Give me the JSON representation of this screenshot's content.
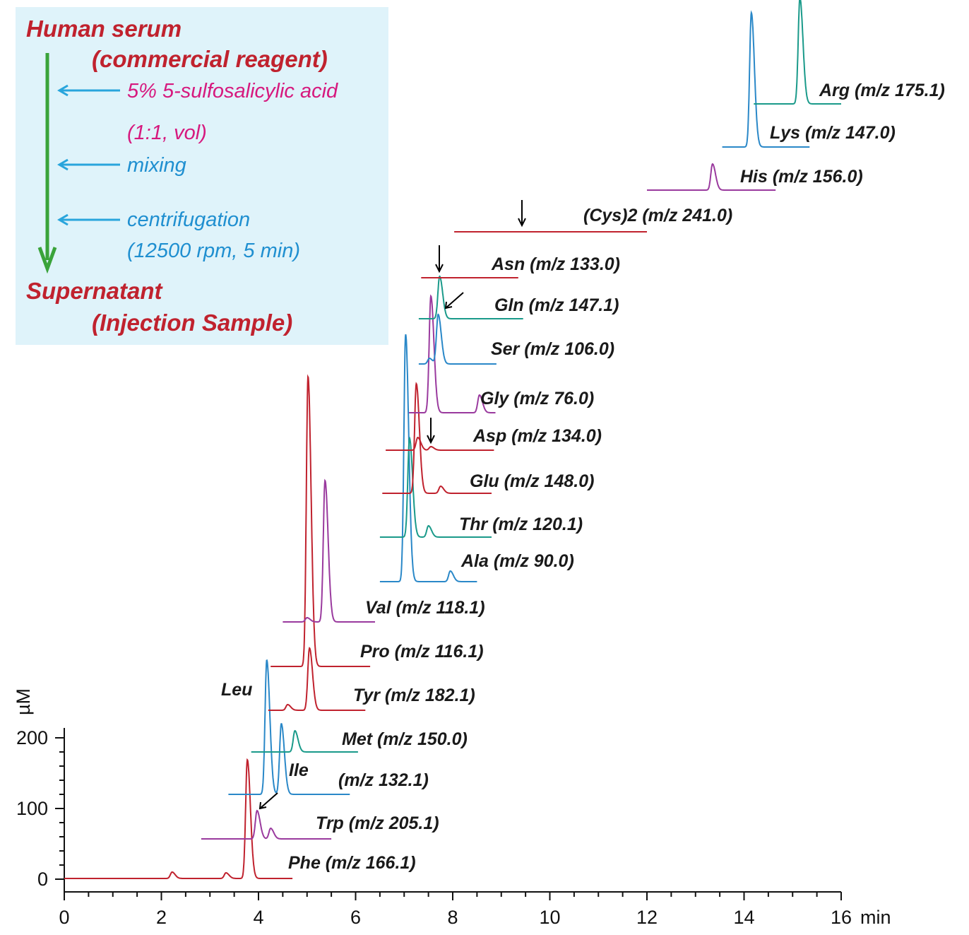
{
  "chart_data": {
    "type": "line",
    "xlabel": "min",
    "ylabel": "µM",
    "xlim": [
      0,
      16
    ],
    "ylim": [
      0,
      200
    ],
    "x_ticks": [
      "0",
      "2",
      "4",
      "6",
      "8",
      "10",
      "12",
      "14",
      "16"
    ],
    "y_ticks": [
      "0",
      "100",
      "200"
    ],
    "x_unit_label": "min",
    "series": [
      {
        "name": "Phe (m/z 166.1)",
        "color": "#c0222e",
        "start": 0,
        "end": 4.7,
        "peaks": [
          [
            3.77,
            168
          ],
          [
            2.22,
            9
          ],
          [
            3.33,
            8
          ]
        ]
      },
      {
        "name": "Trp (m/z 205.1)",
        "color": "#9a3a9e",
        "start": 2.82,
        "end": 5.5,
        "peaks": [
          [
            3.97,
            40
          ],
          [
            4.25,
            15
          ]
        ]
      },
      {
        "name": "(m/z 132.1)",
        "color": "#2a88c8",
        "start": 3.38,
        "end": 5.88,
        "peaks": [
          [
            4.17,
            190
          ],
          [
            4.47,
            100
          ]
        ]
      },
      {
        "name": "Met (m/z 150.0)",
        "color": "#1a9a8a",
        "start": 3.85,
        "end": 6.05,
        "peaks": [
          [
            4.75,
            30
          ]
        ]
      },
      {
        "name": "Tyr (m/z 182.1)",
        "color": "#c0222e",
        "start": 4.2,
        "end": 6.2,
        "peaks": [
          [
            5.05,
            88
          ],
          [
            4.6,
            8
          ]
        ]
      },
      {
        "name": "Pro (m/z 116.1)",
        "color": "#c0222e",
        "start": 4.25,
        "end": 6.3,
        "peaks": [
          [
            5.02,
            410
          ]
        ]
      },
      {
        "name": "Val (m/z 118.1)",
        "color": "#9a3a9e",
        "start": 4.5,
        "end": 6.4,
        "peaks": [
          [
            5.37,
            200
          ],
          [
            5.0,
            6
          ]
        ]
      },
      {
        "name": "Ala (m/z 90.0)",
        "color": "#2a88c8",
        "start": 6.5,
        "end": 8.5,
        "peaks": [
          [
            7.03,
            350
          ],
          [
            7.95,
            15
          ]
        ]
      },
      {
        "name": "Thr (m/z 120.1)",
        "color": "#1a9a8a",
        "start": 6.5,
        "end": 8.8,
        "peaks": [
          [
            7.11,
            140
          ],
          [
            7.5,
            16
          ]
        ]
      },
      {
        "name": "Glu (m/z 148.0)",
        "color": "#c0222e",
        "start": 6.55,
        "end": 8.8,
        "peaks": [
          [
            7.25,
            155
          ],
          [
            7.75,
            10
          ]
        ]
      },
      {
        "name": "Asp (m/z 134.0)",
        "color": "#c0222e",
        "start": 6.62,
        "end": 8.85,
        "peaks": [
          [
            7.28,
            18
          ],
          [
            7.55,
            5
          ]
        ]
      },
      {
        "name": "Gly (m/z 76.0)",
        "color": "#9a3a9e",
        "start": 7.1,
        "end": 8.88,
        "peaks": [
          [
            7.55,
            165
          ],
          [
            8.55,
            25
          ]
        ]
      },
      {
        "name": "Ser (m/z 106.0)",
        "color": "#2a88c8",
        "start": 7.3,
        "end": 8.9,
        "peaks": [
          [
            7.52,
            8
          ],
          [
            7.7,
            70
          ]
        ]
      },
      {
        "name": "Gln (m/z 147.1)",
        "color": "#1a9a8a",
        "start": 7.3,
        "end": 9.45,
        "peaks": [
          [
            7.73,
            60
          ]
        ]
      },
      {
        "name": "Asn (m/z 133.0)",
        "color": "#c0222e",
        "start": 7.35,
        "end": 9.35,
        "peaks": []
      },
      {
        "name": "(Cys)2 (m/z 241.0)",
        "color": "#c0222e",
        "start": 8.03,
        "end": 12.0,
        "peaks": []
      },
      {
        "name": "His (m/z 156.0)",
        "color": "#9a3a9e",
        "start": 12.0,
        "end": 14.65,
        "peaks": [
          [
            13.35,
            37
          ]
        ]
      },
      {
        "name": "Lys (m/z 147.0)",
        "color": "#2a88c8",
        "start": 13.55,
        "end": 15.35,
        "peaks": [
          [
            14.15,
            190
          ]
        ]
      },
      {
        "name": "Arg (m/z 175.1)",
        "color": "#1a9a8a",
        "start": 14.2,
        "end": 16.0,
        "peaks": [
          [
            15.15,
            150
          ]
        ]
      }
    ],
    "peak_labels": [
      "Leu",
      "Ile"
    ]
  },
  "panel": {
    "title_line1": "Human serum",
    "title_line2": "(commercial reagent)",
    "step1_line1": "5% 5-sulfosalicylic acid",
    "step1_line2": "(1:1, vol)",
    "step2": "mixing",
    "step3_line1": "centrifugation",
    "step3_line2": "(12500 rpm, 5 min)",
    "result_line1": "Supernatant",
    "result_line2": "(Injection Sample)"
  },
  "colors": {
    "panel_bg": "#dff3fa",
    "title": "#c0222e",
    "reagent": "#d6197e",
    "step": "#1f8fd0",
    "arrow_main": "#3aa33a",
    "arrow_step": "#29a5dc"
  }
}
